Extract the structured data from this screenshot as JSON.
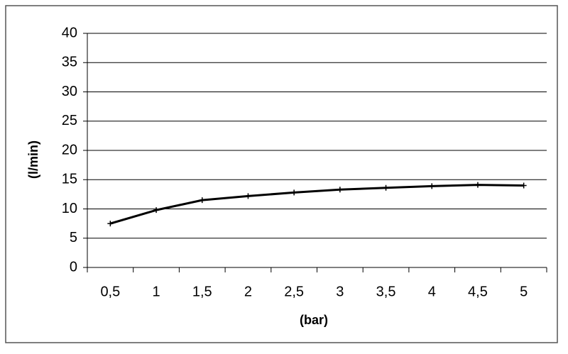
{
  "chart_data": {
    "type": "line",
    "x_label": "(bar)",
    "y_label": "(l/min)",
    "categories": [
      "0,5",
      "1",
      "1,5",
      "2",
      "2,5",
      "3",
      "3,5",
      "4",
      "4,5",
      "5"
    ],
    "series": [
      {
        "color": "#000000",
        "values": [
          7.5,
          9.8,
          11.5,
          12.2,
          12.8,
          13.3,
          13.6,
          13.9,
          14.1,
          14.0
        ]
      }
    ],
    "ylim": [
      0,
      40
    ],
    "yticks": [
      0,
      5,
      10,
      15,
      20,
      25,
      30,
      35,
      40
    ],
    "grid": true
  }
}
